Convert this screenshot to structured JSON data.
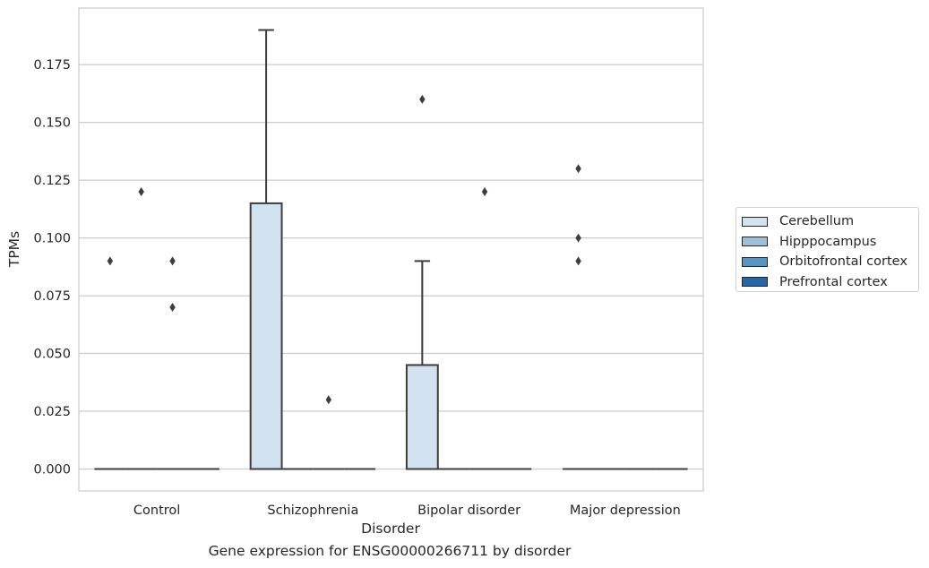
{
  "chart_data": {
    "type": "box",
    "title": "",
    "caption": "Gene expression for ENSG00000266711 by disorder",
    "xlabel": "Disorder",
    "ylabel": "TPMs",
    "categories": [
      "Control",
      "Schizophrenia",
      "Bipolar disorder",
      "Major depression"
    ],
    "ylim": [
      -0.0095,
      0.1995
    ],
    "yticks": [
      "0.000",
      "0.025",
      "0.050",
      "0.075",
      "0.100",
      "0.125",
      "0.150",
      "0.175"
    ],
    "grid": true,
    "legend_position": "right",
    "series": [
      {
        "name": "Cerebellum",
        "color": "#d3e2f0",
        "boxes": [
          {
            "q1": 0,
            "median": 0,
            "q3": 0,
            "whisker_low": 0,
            "whisker_high": 0,
            "outliers": [
              0.09
            ]
          },
          {
            "q1": 0,
            "median": 0,
            "q3": 0.115,
            "whisker_low": 0,
            "whisker_high": 0.19,
            "outliers": []
          },
          {
            "q1": 0,
            "median": 0,
            "q3": 0.045,
            "whisker_low": 0,
            "whisker_high": 0.09,
            "outliers": [
              0.16
            ]
          },
          {
            "q1": 0,
            "median": 0,
            "q3": 0,
            "whisker_low": 0,
            "whisker_high": 0,
            "outliers": [
              0.13,
              0.1,
              0.09
            ]
          }
        ]
      },
      {
        "name": "Hipppocampus",
        "color": "#9cc0db",
        "boxes": [
          {
            "q1": 0,
            "median": 0,
            "q3": 0,
            "whisker_low": 0,
            "whisker_high": 0,
            "outliers": [
              0.12
            ]
          },
          {
            "q1": 0,
            "median": 0,
            "q3": 0,
            "whisker_low": 0,
            "whisker_high": 0,
            "outliers": []
          },
          {
            "q1": 0,
            "median": 0,
            "q3": 0,
            "whisker_low": 0,
            "whisker_high": 0,
            "outliers": []
          },
          {
            "q1": 0,
            "median": 0,
            "q3": 0,
            "whisker_low": 0,
            "whisker_high": 0,
            "outliers": []
          }
        ]
      },
      {
        "name": "Orbitofrontal cortex",
        "color": "#5b93bf",
        "boxes": [
          {
            "q1": 0,
            "median": 0,
            "q3": 0,
            "whisker_low": 0,
            "whisker_high": 0,
            "outliers": [
              0.09,
              0.07
            ]
          },
          {
            "q1": 0,
            "median": 0,
            "q3": 0,
            "whisker_low": 0,
            "whisker_high": 0,
            "outliers": [
              0.03
            ]
          },
          {
            "q1": 0,
            "median": 0,
            "q3": 0,
            "whisker_low": 0,
            "whisker_high": 0,
            "outliers": [
              0.12
            ]
          },
          {
            "q1": 0,
            "median": 0,
            "q3": 0,
            "whisker_low": 0,
            "whisker_high": 0,
            "outliers": []
          }
        ]
      },
      {
        "name": "Prefrontal cortex",
        "color": "#2a67a2",
        "boxes": [
          {
            "q1": 0,
            "median": 0,
            "q3": 0,
            "whisker_low": 0,
            "whisker_high": 0,
            "outliers": []
          },
          {
            "q1": 0,
            "median": 0,
            "q3": 0,
            "whisker_low": 0,
            "whisker_high": 0,
            "outliers": []
          },
          {
            "q1": 0,
            "median": 0,
            "q3": 0,
            "whisker_low": 0,
            "whisker_high": 0,
            "outliers": []
          },
          {
            "q1": 0,
            "median": 0,
            "q3": 0,
            "whisker_low": 0,
            "whisker_high": 0,
            "outliers": []
          }
        ]
      }
    ]
  }
}
